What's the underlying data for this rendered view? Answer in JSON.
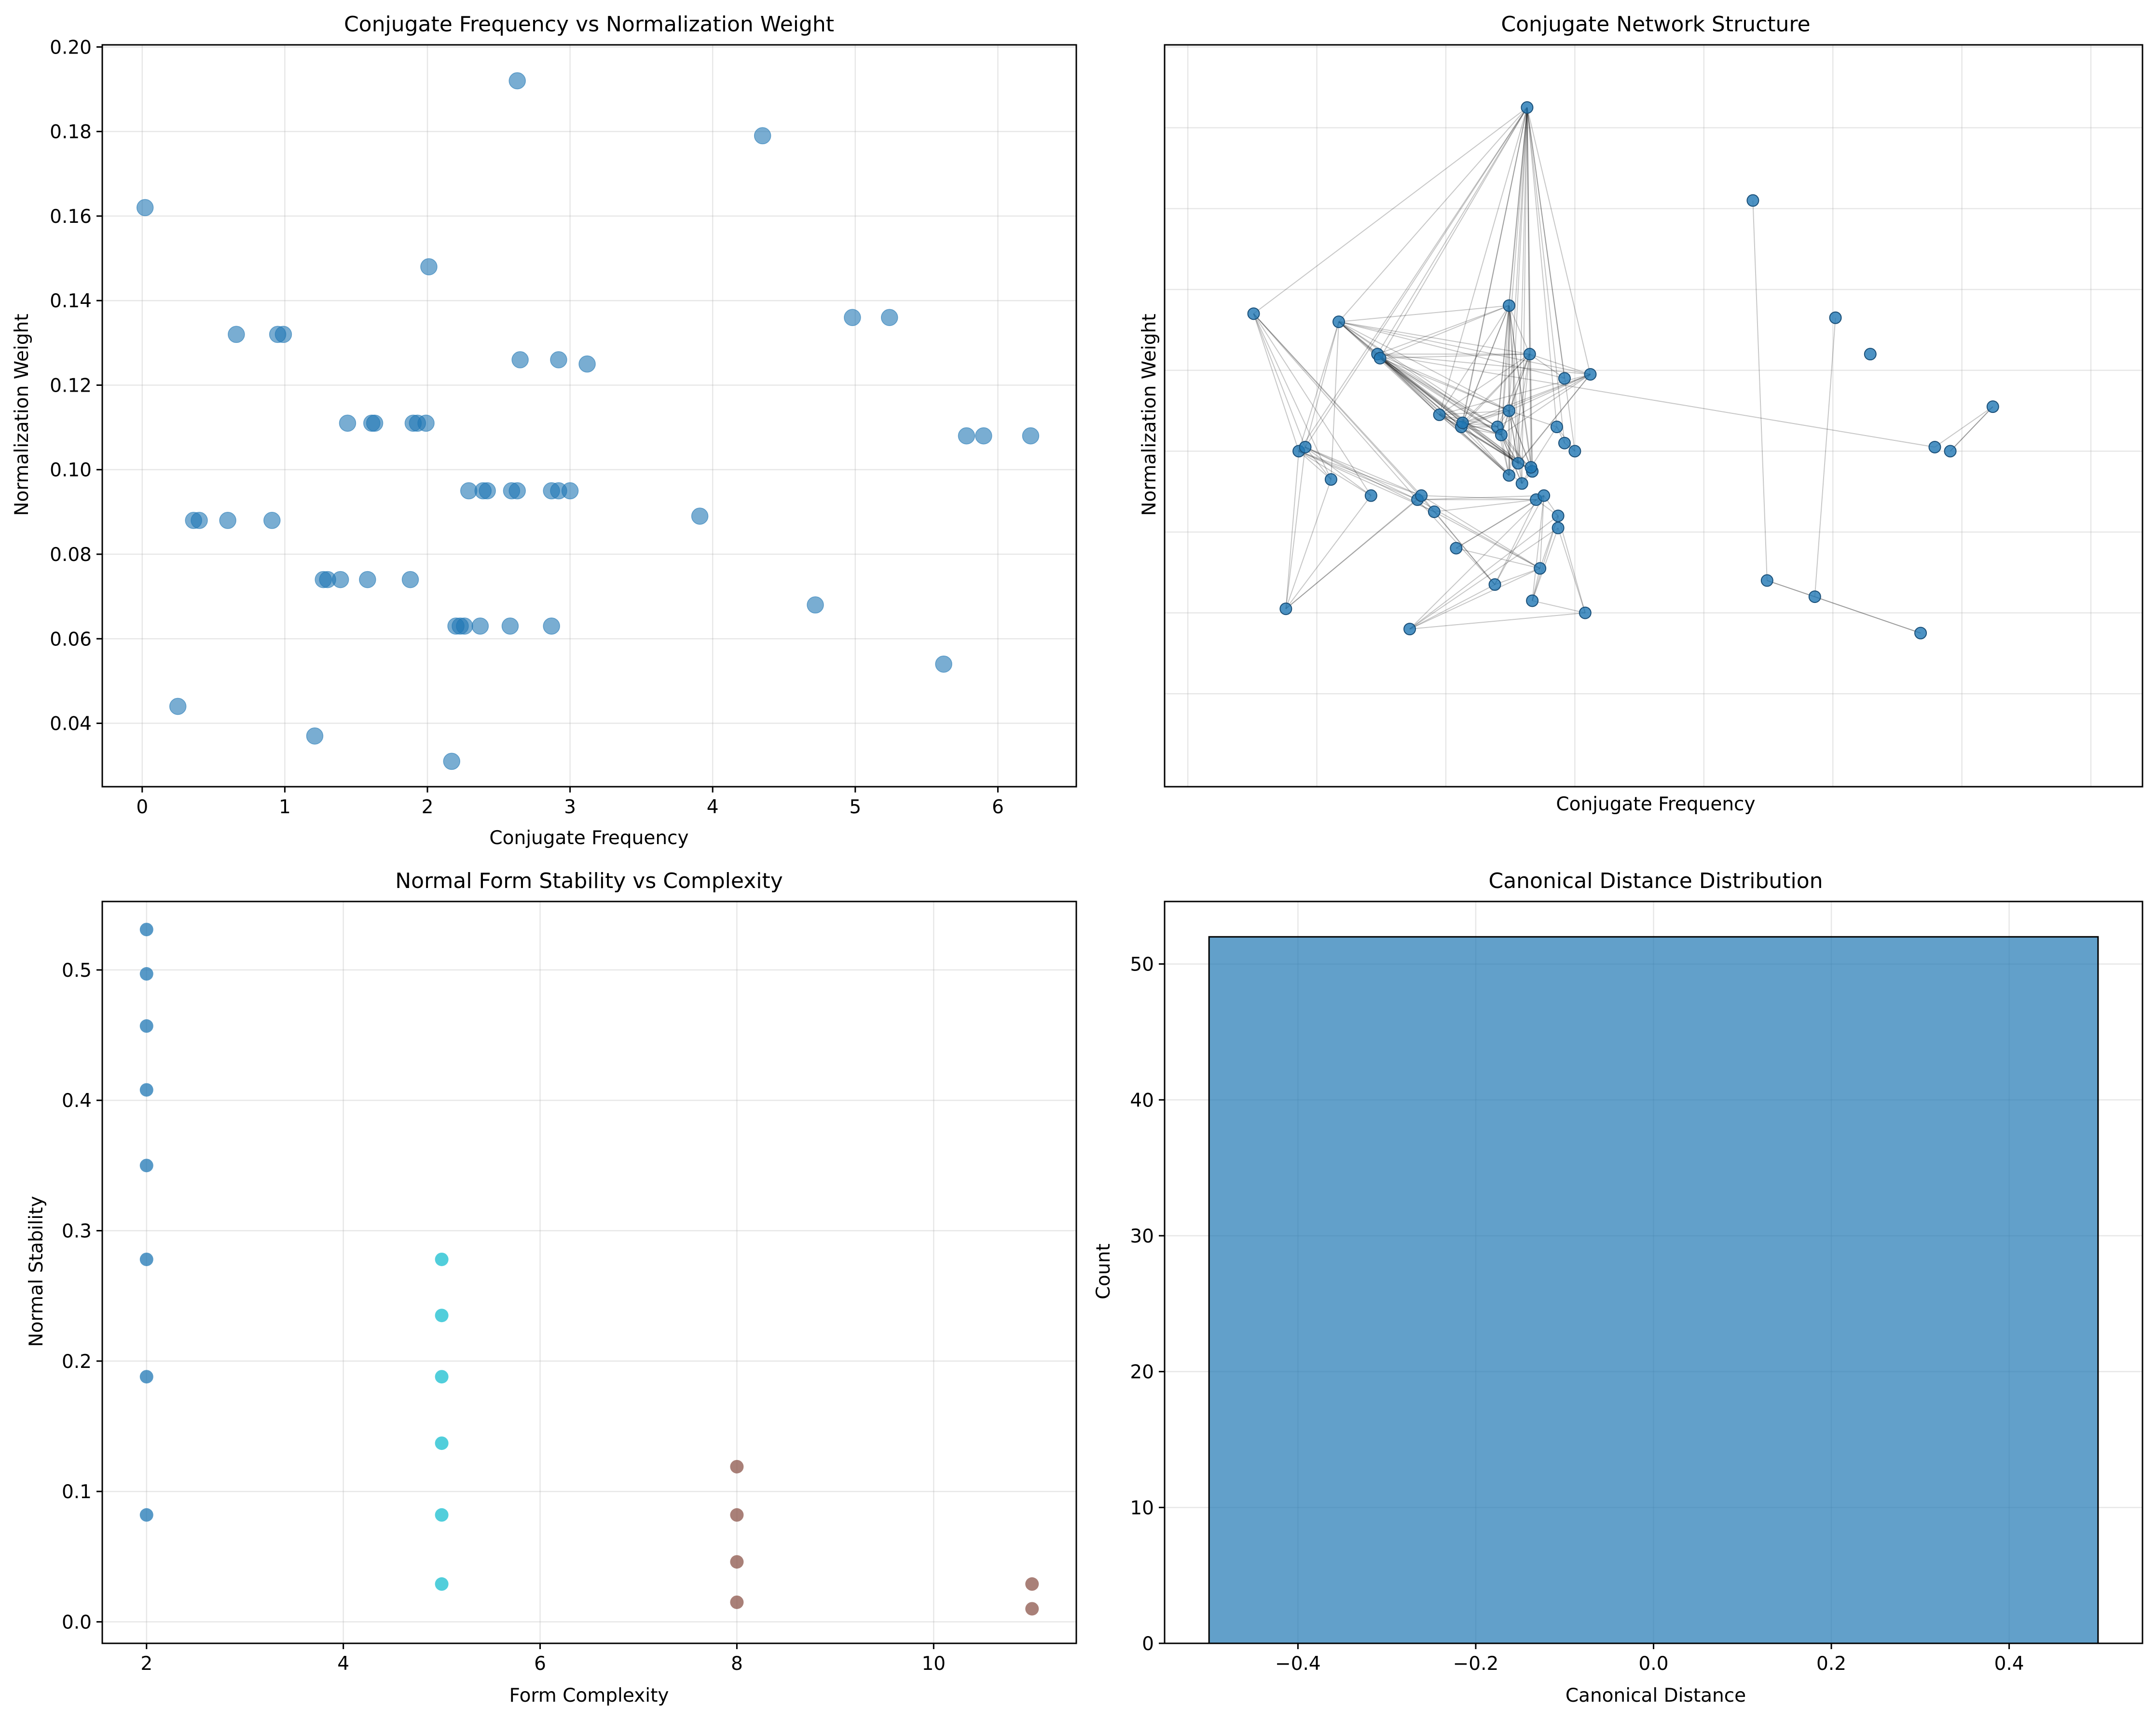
{
  "chart_data": [
    {
      "id": "panel1",
      "type": "scatter",
      "title": "Conjugate Frequency vs Normalization Weight",
      "xlabel": "Conjugate Frequency",
      "ylabel": "Normalization Weight",
      "xlim": [
        -0.28,
        6.55
      ],
      "ylim": [
        0.025,
        0.2005
      ],
      "xticks": [
        0,
        1,
        2,
        3,
        4,
        5,
        6
      ],
      "xticklabels": [
        "0",
        "1",
        "2",
        "3",
        "4",
        "5",
        "6"
      ],
      "yticks": [
        0.04,
        0.06,
        0.08,
        0.1,
        0.12,
        0.14,
        0.16,
        0.18,
        0.2
      ],
      "yticklabels": [
        "0.04",
        "0.06",
        "0.08",
        "0.10",
        "0.12",
        "0.14",
        "0.16",
        "0.18",
        "0.20"
      ],
      "grid": true,
      "color": "#1f77b4",
      "x": [
        2.63,
        4.35,
        0.02,
        2.01,
        0.66,
        0.95,
        0.99,
        4.98,
        5.24,
        2.65,
        2.92,
        3.12,
        1.44,
        1.61,
        1.63,
        1.9,
        1.93,
        1.99,
        5.78,
        5.9,
        6.23,
        2.29,
        2.39,
        2.42,
        2.59,
        2.63,
        2.87,
        2.92,
        3.0,
        0.36,
        0.4,
        0.6,
        0.91,
        3.91,
        1.27,
        1.3,
        1.39,
        1.58,
        1.88,
        4.72,
        2.2,
        2.23,
        2.26,
        2.37,
        2.58,
        2.87,
        5.62,
        0.25,
        1.21,
        2.17
      ],
      "y": [
        0.192,
        0.179,
        0.162,
        0.148,
        0.132,
        0.132,
        0.132,
        0.136,
        0.136,
        0.126,
        0.126,
        0.125,
        0.111,
        0.111,
        0.111,
        0.111,
        0.111,
        0.111,
        0.108,
        0.108,
        0.108,
        0.095,
        0.095,
        0.095,
        0.095,
        0.095,
        0.095,
        0.095,
        0.095,
        0.088,
        0.088,
        0.088,
        0.088,
        0.089,
        0.074,
        0.074,
        0.074,
        0.074,
        0.074,
        0.068,
        0.063,
        0.063,
        0.063,
        0.063,
        0.063,
        0.063,
        0.054,
        0.044,
        0.037,
        0.031
      ]
    },
    {
      "id": "panel2",
      "type": "network",
      "title": "Conjugate Network Structure",
      "xlabel": "Conjugate Frequency",
      "ylabel": "Normalization Weight",
      "xlim": [
        -0.68,
        6.9
      ],
      "ylim": [
        0.017,
        0.2005
      ],
      "grid": true,
      "xticks": [
        -0.5,
        0.5,
        1.5,
        2.5,
        3.5,
        4.5,
        5.5,
        6.5
      ],
      "yticks": [
        0.04,
        0.06,
        0.08,
        0.1,
        0.12,
        0.14,
        0.16,
        0.18,
        0.2
      ],
      "color": "#1f77b4",
      "nodes_x": [
        2.13,
        3.88,
        0.01,
        1.99,
        0.67,
        0.97,
        0.99,
        4.52,
        4.79,
        2.15,
        2.42,
        2.62,
        1.45,
        1.62,
        1.63,
        1.9,
        1.93,
        1.99,
        5.29,
        5.41,
        5.74,
        2.06,
        1.99,
        2.17,
        2.09,
        2.16,
        2.36,
        2.42,
        2.5,
        0.36,
        0.41,
        0.61,
        0.92,
        3.99,
        1.28,
        1.31,
        1.41,
        1.58,
        1.88,
        4.36,
        2.2,
        2.23,
        2.26,
        2.37,
        2.58,
        2.37,
        5.18,
        0.26,
        1.22,
        2.17
      ],
      "nodes_y": [
        0.185,
        0.162,
        0.134,
        0.136,
        0.132,
        0.124,
        0.123,
        0.133,
        0.124,
        0.124,
        0.118,
        0.119,
        0.109,
        0.106,
        0.107,
        0.106,
        0.104,
        0.11,
        0.101,
        0.1,
        0.111,
        0.097,
        0.094,
        0.095,
        0.092,
        0.096,
        0.106,
        0.102,
        0.1,
        0.1,
        0.101,
        0.093,
        0.089,
        0.068,
        0.088,
        0.089,
        0.085,
        0.076,
        0.067,
        0.064,
        0.088,
        0.071,
        0.089,
        0.084,
        0.06,
        0.081,
        0.055,
        0.061,
        0.056,
        0.063
      ],
      "edges_from": [
        0,
        0,
        0,
        0,
        0,
        0,
        0,
        0,
        0,
        0,
        0,
        0,
        0,
        0,
        0,
        0,
        0,
        0,
        0,
        0,
        0,
        0,
        0,
        0,
        3,
        3,
        3,
        3,
        3,
        3,
        3,
        3,
        3,
        3,
        3,
        3,
        3,
        3,
        3,
        4,
        4,
        4,
        4,
        4,
        4,
        4,
        4,
        4,
        4,
        4,
        4,
        4,
        4,
        5,
        5,
        5,
        5,
        5,
        5,
        5,
        5,
        5,
        5,
        5,
        5,
        5,
        6,
        6,
        6,
        6,
        6,
        6,
        6,
        6,
        6,
        6,
        9,
        9,
        9,
        9,
        9,
        9,
        9,
        9,
        9,
        9,
        9,
        11,
        11,
        11,
        11,
        11,
        11,
        11,
        11,
        12,
        12,
        12,
        12,
        12,
        12,
        12,
        12,
        12,
        13,
        13,
        13,
        13,
        13,
        13,
        13,
        14,
        14,
        14,
        14,
        14,
        14,
        15,
        15,
        15,
        15,
        15,
        15,
        16,
        16,
        16,
        16,
        16,
        17,
        17,
        17,
        17,
        17,
        17,
        2,
        2,
        2,
        2,
        2,
        2,
        2,
        29,
        29,
        29,
        29,
        29,
        29,
        30,
        30,
        30,
        30,
        30,
        47,
        47,
        47,
        47,
        47,
        47,
        48,
        48,
        48,
        48,
        48,
        48,
        49,
        49,
        49,
        49,
        34,
        34,
        34,
        34,
        35,
        35,
        35,
        36,
        36,
        36,
        37,
        37,
        37,
        38,
        38,
        38,
        40,
        40,
        41,
        41,
        42,
        43,
        44,
        45,
        23,
        24,
        25,
        26,
        27,
        28,
        1,
        33,
        33,
        7,
        19,
        20,
        18,
        46
      ],
      "edges_to": [
        3,
        4,
        5,
        6,
        9,
        10,
        11,
        12,
        13,
        14,
        15,
        16,
        17,
        21,
        22,
        23,
        24,
        25,
        26,
        27,
        28,
        29,
        30,
        2,
        4,
        5,
        6,
        9,
        12,
        13,
        14,
        15,
        16,
        17,
        21,
        22,
        23,
        24,
        25,
        5,
        6,
        9,
        10,
        11,
        12,
        13,
        14,
        15,
        16,
        17,
        29,
        30,
        31,
        6,
        9,
        11,
        12,
        13,
        14,
        15,
        16,
        17,
        18,
        21,
        22,
        23,
        9,
        12,
        13,
        14,
        15,
        16,
        17,
        21,
        22,
        23,
        10,
        11,
        12,
        13,
        14,
        15,
        16,
        17,
        21,
        22,
        23,
        12,
        13,
        14,
        15,
        16,
        17,
        21,
        22,
        13,
        14,
        15,
        16,
        17,
        21,
        22,
        23,
        24,
        14,
        15,
        16,
        17,
        21,
        22,
        23,
        15,
        16,
        17,
        21,
        22,
        23,
        16,
        17,
        21,
        22,
        23,
        24,
        17,
        21,
        22,
        23,
        24,
        21,
        22,
        23,
        24,
        25,
        26,
        29,
        30,
        31,
        32,
        34,
        35,
        36,
        30,
        31,
        32,
        34,
        35,
        36,
        31,
        32,
        34,
        35,
        36,
        29,
        30,
        31,
        32,
        34,
        35,
        38,
        41,
        42,
        43,
        44,
        45,
        41,
        42,
        43,
        44,
        38,
        40,
        41,
        42,
        38,
        40,
        41,
        38,
        40,
        41,
        40,
        41,
        42,
        40,
        41,
        42,
        42,
        43,
        42,
        43,
        43,
        44,
        45,
        49,
        24,
        25,
        26,
        27,
        28,
        26,
        33,
        39,
        46,
        39,
        20,
        19,
        20,
        39
      ]
    },
    {
      "id": "panel3",
      "type": "scatter",
      "title": "Normal Form Stability vs Complexity",
      "xlabel": "Form Complexity",
      "ylabel": "Normal Stability",
      "xlim": [
        1.55,
        11.45
      ],
      "ylim": [
        -0.0165,
        0.5525
      ],
      "xticks": [
        2,
        4,
        6,
        8,
        10
      ],
      "xticklabels": [
        "2",
        "4",
        "6",
        "8",
        "10"
      ],
      "yticks": [
        0.0,
        0.1,
        0.2,
        0.3,
        0.4,
        0.5
      ],
      "yticklabels": [
        "0.0",
        "0.1",
        "0.2",
        "0.3",
        "0.4",
        "0.5"
      ],
      "grid": true,
      "series": [
        {
          "x": [
            2,
            2,
            2,
            2,
            2,
            2,
            2,
            2
          ],
          "y": [
            0.531,
            0.497,
            0.457,
            0.408,
            0.35,
            0.278,
            0.188,
            0.082
          ],
          "color": "#1f77b4"
        },
        {
          "x": [
            5,
            5,
            5,
            5,
            5,
            5
          ],
          "y": [
            0.278,
            0.235,
            0.188,
            0.137,
            0.082,
            0.029
          ],
          "color": "#17becf"
        },
        {
          "x": [
            8,
            8,
            8,
            8
          ],
          "y": [
            0.119,
            0.082,
            0.046,
            0.015
          ],
          "color": "#8c564b"
        },
        {
          "x": [
            11,
            11
          ],
          "y": [
            0.029,
            0.01
          ],
          "color": "#8c564b"
        }
      ]
    },
    {
      "id": "panel4",
      "type": "bar",
      "title": "Canonical Distance Distribution",
      "xlabel": "Canonical Distance",
      "ylabel": "Count",
      "xlim": [
        -0.55,
        0.55
      ],
      "ylim": [
        0,
        54.6
      ],
      "xticks": [
        -0.4,
        -0.2,
        0.0,
        0.2,
        0.4
      ],
      "xticklabels": [
        "−0.4",
        "−0.2",
        "0.0",
        "0.2",
        "0.4"
      ],
      "yticks": [
        0,
        10,
        20,
        30,
        40,
        50
      ],
      "yticklabels": [
        "0",
        "10",
        "20",
        "30",
        "40",
        "50"
      ],
      "grid": true,
      "color": "#1f77b4",
      "bins": [
        [
          -0.5,
          0.5
        ]
      ],
      "values": [
        52
      ]
    }
  ]
}
